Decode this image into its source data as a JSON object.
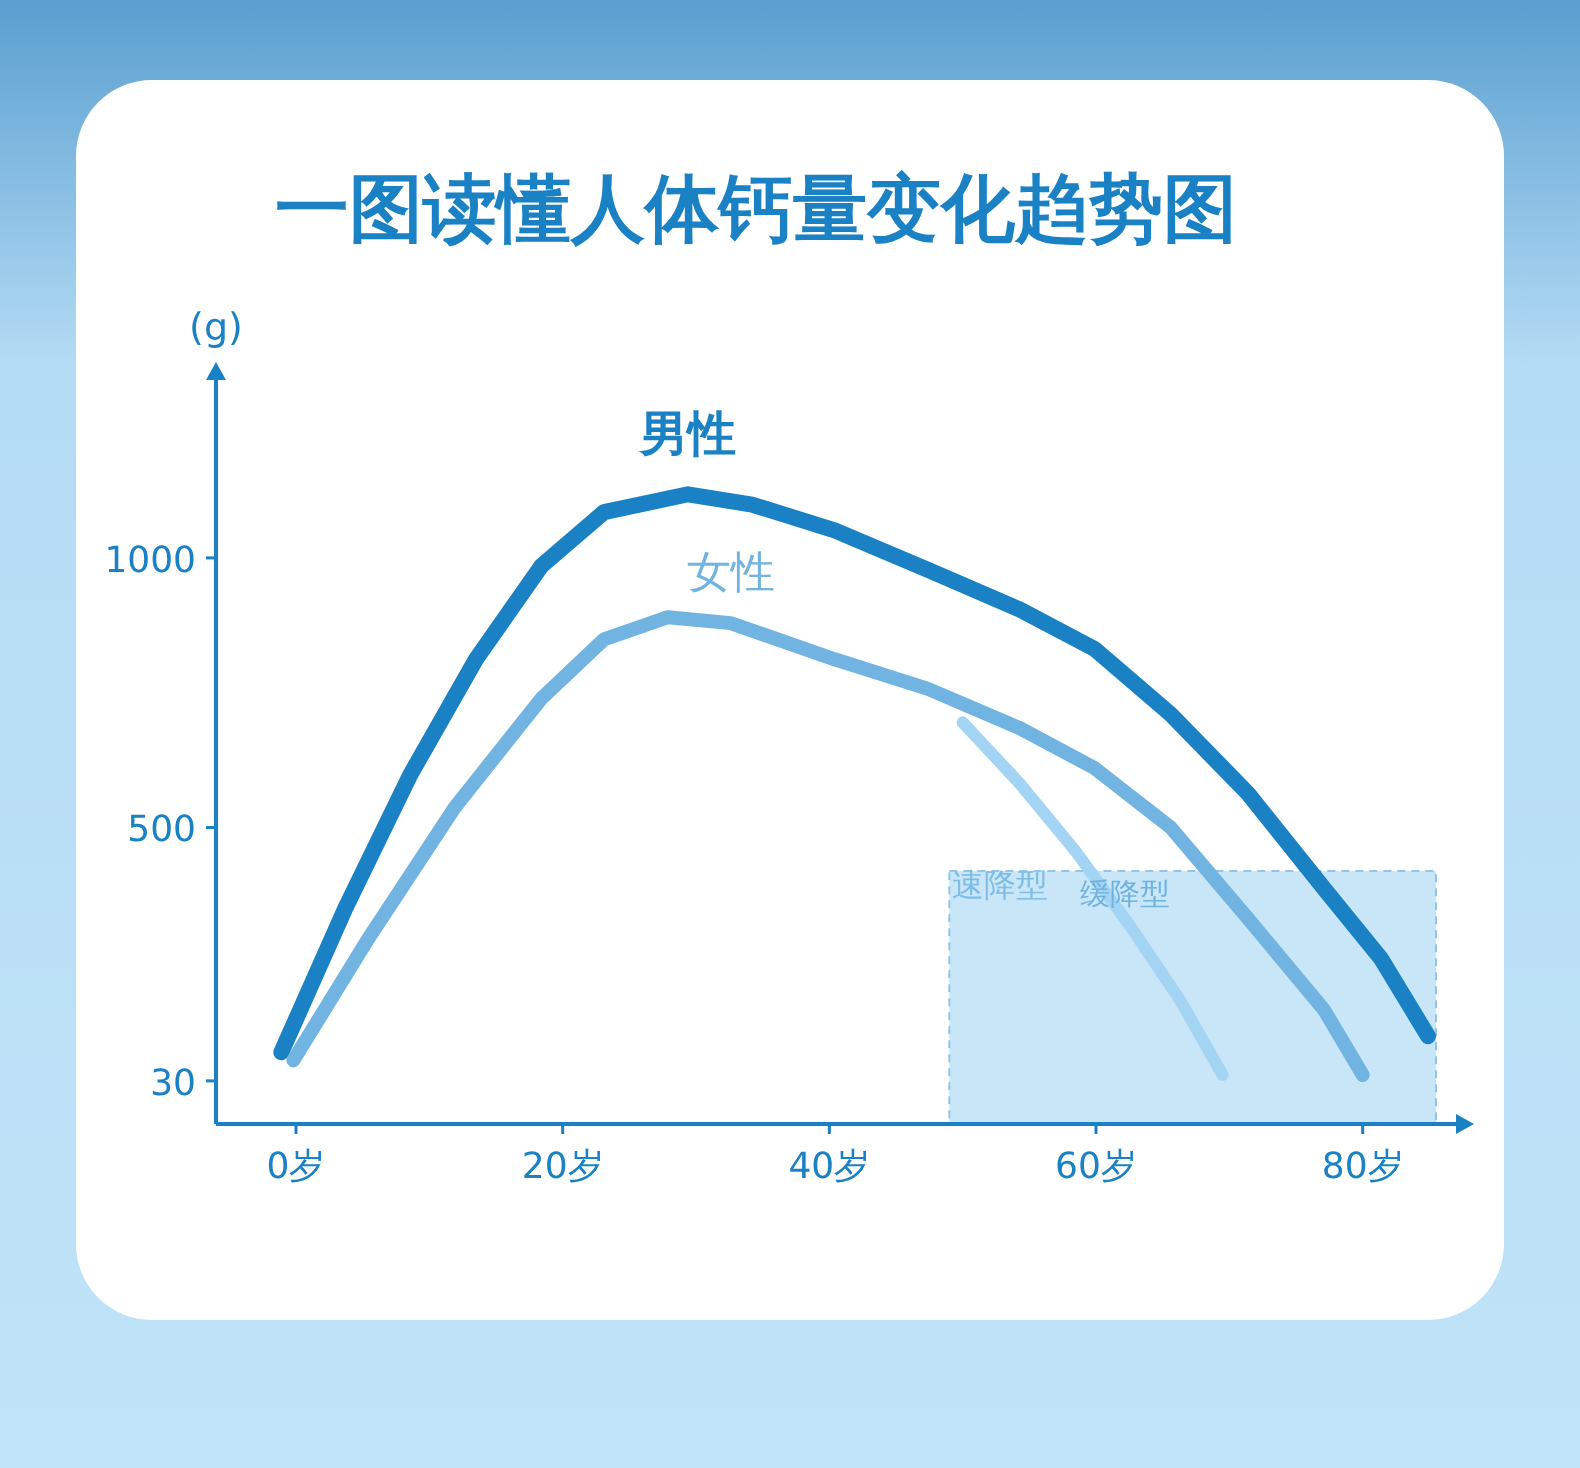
{
  "chart_data": {
    "type": "line",
    "title": "一图读懂人体钙量变化趋势图",
    "ylabel": "(g)",
    "x": [
      -1.1,
      3.7,
      8.6,
      13.5,
      18.4,
      23.1,
      29.4,
      34.2,
      40.4,
      47.4,
      54.3,
      59.9,
      65.6,
      71.4,
      77.1,
      81.4,
      84.9
    ],
    "series": [
      {
        "name": "男性",
        "color": "#1a82c4",
        "values": [
          83,
          350,
          599,
          812,
          985,
          1085,
          1118,
          1099,
          1051,
          978,
          904,
          831,
          710,
          563,
          387,
          256,
          113
        ]
      },
      {
        "name": "女性",
        "color": "#72b4e1",
        "x": [
          -0.2,
          5.4,
          11.9,
          18.4,
          23.1,
          27.9,
          32.6,
          40.4,
          47.4,
          54.3,
          59.9,
          65.6,
          71.4,
          77.1,
          80
        ],
        "values": [
          68,
          293,
          537,
          739,
          849,
          890,
          879,
          812,
          757,
          684,
          610,
          500,
          331,
          162,
          41
        ]
      },
      {
        "name": "速降型",
        "color": "#a3d4f4",
        "x": [
          50,
          54.3,
          58.5,
          62.7,
          66.3,
          69.5
        ],
        "values": [
          695,
          581,
          455,
          312,
          180,
          41
        ]
      }
    ],
    "xlim": [
      -6,
      87
    ],
    "ylim": [
      -50,
      1330
    ],
    "xticks": [
      {
        "value": 0,
        "label": "0岁"
      },
      {
        "value": 20,
        "label": "20岁"
      },
      {
        "value": 40,
        "label": "40岁"
      },
      {
        "value": 60,
        "label": "60岁"
      },
      {
        "value": 80,
        "label": "80岁"
      }
    ],
    "yticks": [
      30,
      500,
      1000
    ],
    "bands": [
      {
        "axis": "x",
        "from": 49,
        "to": 85.5,
        "color": "#c3e3f7"
      }
    ],
    "annotations": [
      "缓降型"
    ],
    "grid": false,
    "marker": "none",
    "line_style": "solid"
  }
}
